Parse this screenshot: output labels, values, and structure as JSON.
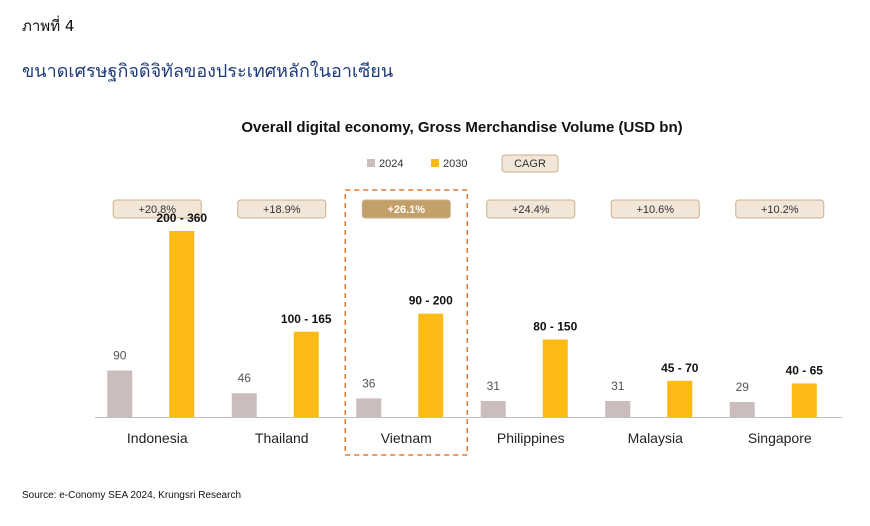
{
  "header": {
    "figure_label": "ภาพที่ 4",
    "figure_title": "ขนาดเศรษฐกิจดิจิทัลของประเทศหลักในอาเซียน"
  },
  "source": "Source: e-Conomy SEA 2024, Krungsri Research",
  "chart_data": {
    "type": "bar",
    "title": "Overall digital economy, Gross Merchandise Volume (USD bn)",
    "categories": [
      "Indonesia",
      "Thailand",
      "Vietnam",
      "Philippines",
      "Malaysia",
      "Singapore"
    ],
    "series": [
      {
        "name": "2024",
        "values": [
          90,
          46,
          36,
          31,
          31,
          29
        ],
        "labels": [
          "90",
          "46",
          "36",
          "31",
          "31",
          "29"
        ],
        "color": "#cbbcbd"
      },
      {
        "name": "2030",
        "values": [
          360,
          165,
          200,
          150,
          70,
          65
        ],
        "labels": [
          "200 - 360",
          "100 - 165",
          "90 - 200",
          "80 - 150",
          "45 - 70",
          "40 - 65"
        ],
        "color": "#fbbb14"
      }
    ],
    "cagr_label": "CAGR",
    "cagr": [
      "+20.8%",
      "+18.9%",
      "+26.1%",
      "+24.4%",
      "+10.6%",
      "+10.2%"
    ],
    "highlight": "Vietnam",
    "ylim": [
      0,
      360
    ],
    "grid": false,
    "legend": "top-center",
    "colors": {
      "badge_fill": "#f2e6d8",
      "badge_border": "#c9b08e",
      "badge_highlight": "#c3a06a",
      "highlight_box": "#e07a2f",
      "axis": "#bfbfbf"
    }
  }
}
